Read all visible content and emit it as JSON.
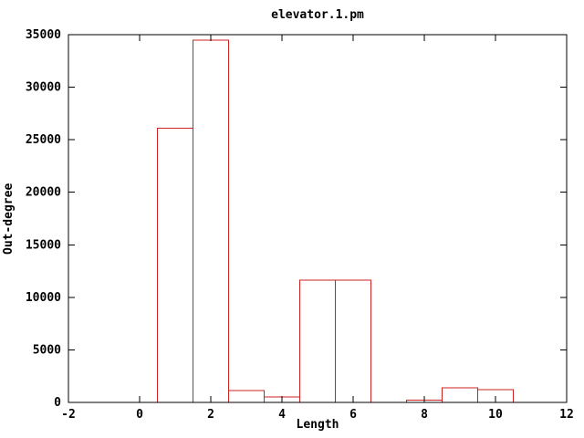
{
  "chart_data": {
    "type": "bar",
    "style": "outlined-histogram",
    "title": "elevator.1.pm",
    "xlabel": "Length",
    "ylabel": "Out-degree",
    "xlim": [
      -2,
      12
    ],
    "ylim": [
      0,
      35000
    ],
    "xticks": [
      -2,
      0,
      2,
      4,
      6,
      8,
      10,
      12
    ],
    "yticks": [
      0,
      5000,
      10000,
      15000,
      20000,
      25000,
      30000,
      35000
    ],
    "grid": false,
    "legend": "none",
    "bar_width": 1,
    "bar_outline_color": "#cc2222",
    "axis_color": "#000000",
    "background_color": "#ffffff",
    "categories": [
      1,
      2,
      3,
      4,
      5,
      6,
      8,
      9,
      10
    ],
    "values": [
      26100,
      34500,
      1150,
      500,
      11650,
      11650,
      200,
      1400,
      1200
    ]
  }
}
